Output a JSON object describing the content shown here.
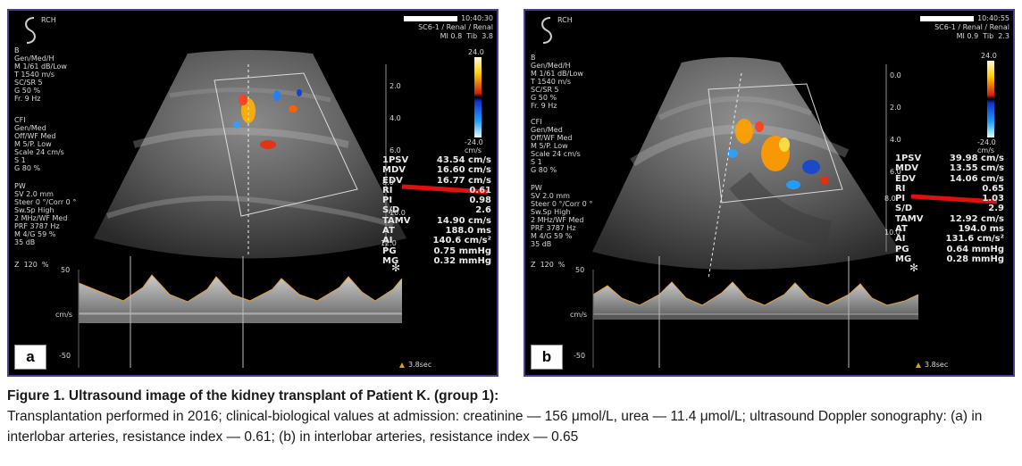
{
  "figure": {
    "caption_title": "Figure 1. Ultrasound image of the kidney transplant of Patient K. (group 1):",
    "caption_text": "Transplantation performed in 2016; clinical-biological values at admission: creatinine — 156 μmol/L, urea — 11.4 μmol/L; ultrasound Doppler sonography: (a) in interlobar arteries, resistance index — 0.61; (b) in interlobar arteries, resistance index — 0.65"
  },
  "panels": [
    {
      "label": "a",
      "brand": "RCH",
      "time": "10:40:30",
      "probe": "SC6-1 / Renal / Renal",
      "mi": "MI 0.8  Tib  3.8",
      "b_params": "B\nGen/Med/H\nM 1/61 dB/Low\nT 1540 m/s\nSC/SR 5\nG 50 %\nFr. 9 Hz",
      "cfi_params": "CFI\nGen/Med\nOff/WF Med\nM 5/P. Low\nScale 24 cm/s\nS 1\nG 80 %",
      "pw_params": "PW\nSV 2.0 mm\nSteer 0 °/Corr 0 °\nSw.Sp High\n2 MHz/WF Med\nPRF 3787 Hz\nM 4/G 59 %\n35 dB",
      "zoom": "Z  120  %",
      "depth_ticks": [
        "2.0",
        "4.0",
        "6.0",
        "8.0",
        "10.0",
        "12.0"
      ],
      "scale_top": "24.0",
      "scale_bottom": "-24.0\ncm/s",
      "spec_top": "50",
      "spec_unit": "cm/s",
      "spec_bottom": "-50",
      "sweep": "3.8sec",
      "measurements": [
        {
          "label": "1PSV",
          "value": "43.54 cm/s"
        },
        {
          "label": "MDV",
          "value": "16.60 cm/s"
        },
        {
          "label": "EDV",
          "value": "16.77 cm/s"
        },
        {
          "label": "RI",
          "value": "0.61"
        },
        {
          "label": "PI",
          "value": "0.98"
        },
        {
          "label": "S/D",
          "value": "2.6"
        },
        {
          "label": "TAMV",
          "value": "14.90 cm/s"
        },
        {
          "label": "AT",
          "value": "188.0 ms"
        },
        {
          "label": "AI",
          "value": "140.6 cm/s²"
        },
        {
          "label": "PG",
          "value": "0.75 mmHg"
        },
        {
          "label": "MG",
          "value": "0.32 mmHg"
        }
      ]
    },
    {
      "label": "b",
      "brand": "RCH",
      "time": "10:40:55",
      "probe": "SC6-1 / Renal / Renal",
      "mi": "MI 0.9  Tib  2.3",
      "b_params": "B\nGen/Med/H\nM 1/61 dB/Low\nT 1540 m/s\nSC/SR 5\nG 50 %\nFr. 9 Hz",
      "cfi_params": "CFI\nGen/Med\nOff/WF Med\nM 5/P. Low\nScale 24 cm/s\nS 1\nG 80 %",
      "pw_params": "PW\nSV 2.0 mm\nSteer 0 °/Corr 0 °\nSw.Sp High\n2 MHz/WF Med\nPRF 3787 Hz\nM 4/G 59 %\n35 dB",
      "zoom": "Z  120  %",
      "depth_ticks": [
        "0.0",
        "2.0",
        "4.0",
        "6.0",
        "8.0",
        "10.0"
      ],
      "scale_top": "24.0",
      "scale_bottom": "-24.0\ncm/s",
      "spec_top": "50",
      "spec_unit": "cm/s",
      "spec_bottom": "-50",
      "sweep": "3.8sec",
      "measurements": [
        {
          "label": "1PSV",
          "value": "39.98 cm/s"
        },
        {
          "label": "MDV",
          "value": "13.55 cm/s"
        },
        {
          "label": "EDV",
          "value": "14.06 cm/s"
        },
        {
          "label": "RI",
          "value": "0.65"
        },
        {
          "label": "PI",
          "value": "1.03"
        },
        {
          "label": "S/D",
          "value": "2.9"
        },
        {
          "label": "TAMV",
          "value": "12.92 cm/s"
        },
        {
          "label": "AT",
          "value": "194.0 ms"
        },
        {
          "label": "AI",
          "value": "131.6 cm/s²"
        },
        {
          "label": "PG",
          "value": "0.64 mmHg"
        },
        {
          "label": "MG",
          "value": "0.28 mmHg"
        }
      ]
    }
  ]
}
